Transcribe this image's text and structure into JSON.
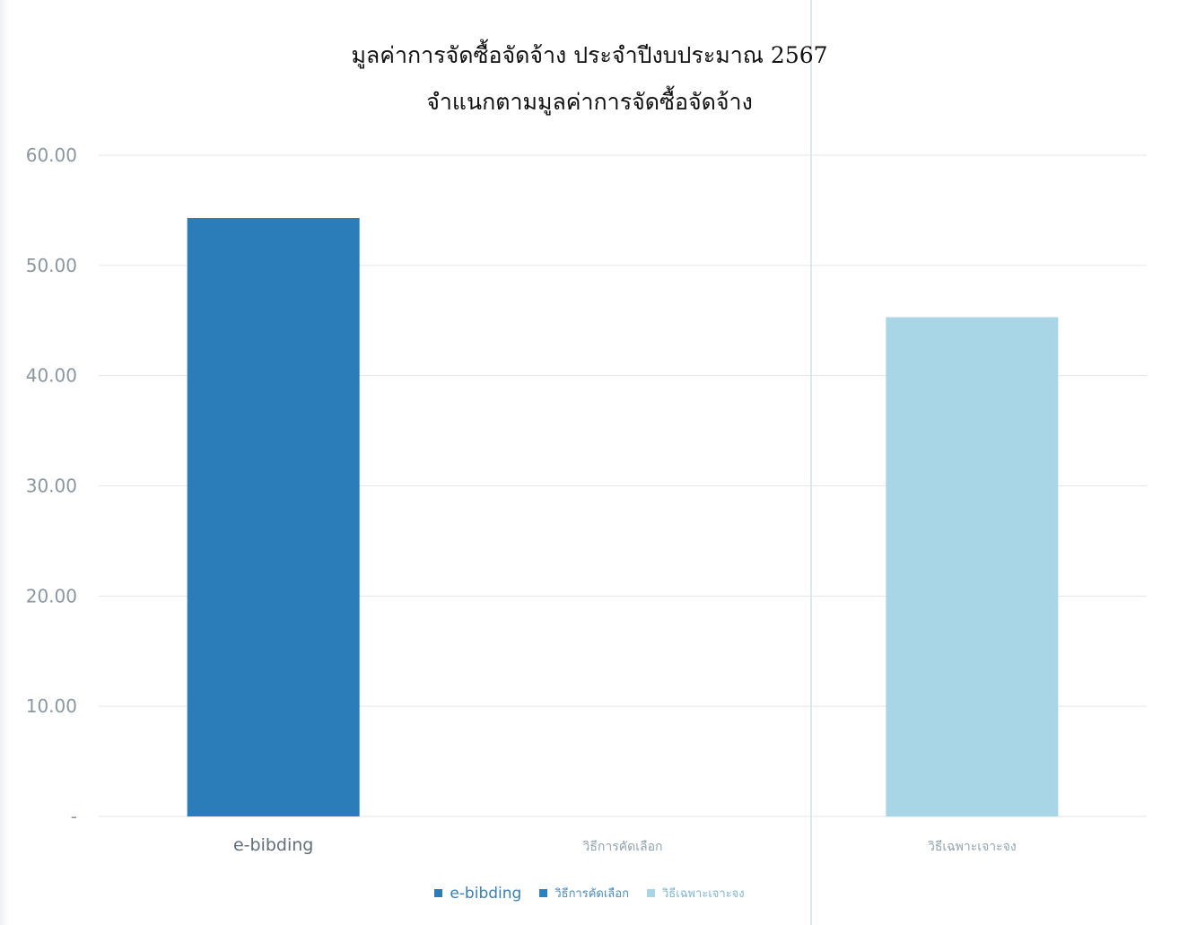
{
  "chart_data": {
    "type": "bar",
    "title": "มูลค่าการจัดซื้อจัดจ้าง ประจำปีงบประมาณ 2567",
    "subtitle": "จำแนกตามมูลค่าการจัดซื้อจัดจ้าง",
    "categories": [
      "e-bibding",
      "วิธีการคัดเลือก",
      "วิธีเฉพาะเจาะจง"
    ],
    "values": [
      54.3,
      0,
      45.3
    ],
    "ylim": [
      0,
      60
    ],
    "yticks": [
      0,
      10,
      20,
      30,
      40,
      50,
      60
    ],
    "ytick_labels": [
      "-",
      "10.00",
      "20.00",
      "30.00",
      "40.00",
      "50.00",
      "60.00"
    ],
    "grid": true,
    "colors": [
      "#2a7db8",
      "#2a82c4",
      "#a8d6e6"
    ],
    "legend": {
      "placement": "bottom",
      "entries": [
        "e-bibding",
        "วิธีการคัดเลือก",
        "วิธีเฉพาะเจาะจง"
      ]
    }
  }
}
